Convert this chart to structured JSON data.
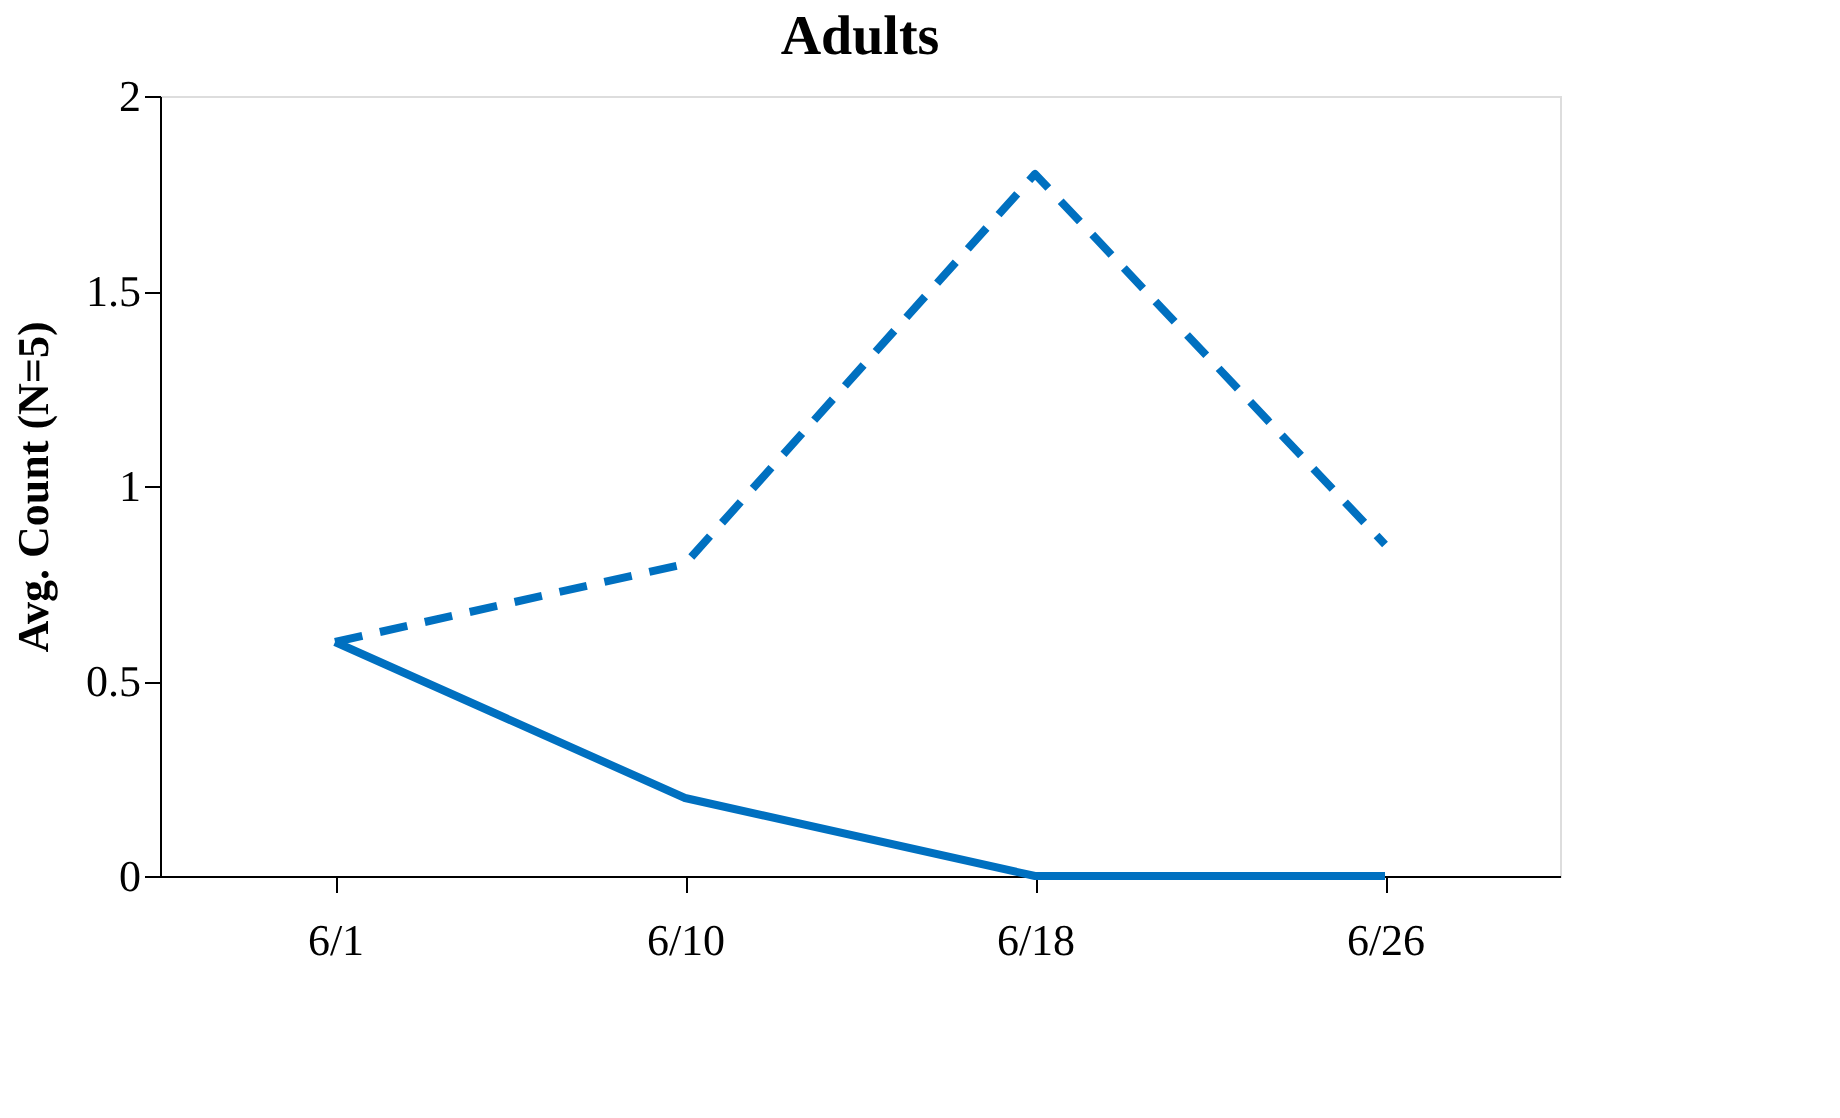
{
  "chart_data": {
    "type": "line",
    "title": "Adults",
    "ylabel": "Avg. Count (N=5)",
    "categories": [
      "6/1",
      "6/10",
      "6/18",
      "6/26"
    ],
    "series": [
      {
        "color": "#0070c0",
        "line_style": "dashed",
        "values": [
          0.6,
          0.8,
          1.8,
          0.85
        ]
      },
      {
        "color": "#0070c0",
        "line_style": "solid",
        "values": [
          0.6,
          0.2,
          0,
          0
        ]
      }
    ],
    "ylim": [
      0,
      2
    ],
    "yticks": [
      0,
      0.5,
      1,
      1.5,
      2
    ],
    "grid": false,
    "legend": false,
    "marker": "none"
  }
}
